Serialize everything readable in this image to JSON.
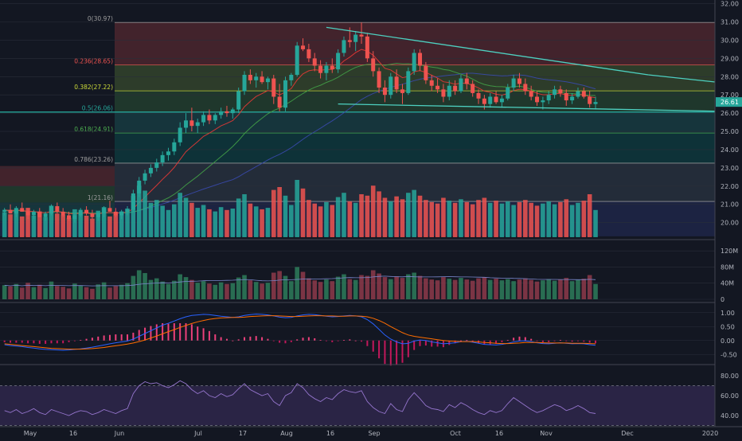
{
  "colors": {
    "background": "#131722",
    "up": "#26a69a",
    "down": "#ef5350",
    "trendline": "#4dd0c0",
    "fib_line_05": "#26a69a",
    "price_tag": "#26a69a",
    "ema_red": "#e53935",
    "ma_green": "#43a047",
    "ma_blue": "#3949ab",
    "macd": "#2962ff",
    "signal": "#ff6d00",
    "rsi_band": "#7e57c2"
  },
  "chart_data": [
    {
      "type": "candlestick",
      "name": "price",
      "y_axis_labels": [
        "32.00",
        "31.00",
        "30.00",
        "29.00",
        "28.00",
        "27.00",
        "26.00",
        "25.00",
        "24.00",
        "23.00",
        "22.00",
        "21.00",
        "20.00"
      ],
      "ylim": [
        19.2,
        32.2
      ],
      "x_axis_labels": [
        "May",
        "16",
        "Jun",
        "Jul",
        "17",
        "Aug",
        "16",
        "Sep",
        "Oct",
        "16",
        "Nov",
        "Dec",
        "2020"
      ],
      "last_price_label": "26.61",
      "last_price": 26.61,
      "fib_levels": [
        {
          "label": "0(30.97)",
          "value": 30.97,
          "color": "#9e9e9e",
          "fill": "#ef5350"
        },
        {
          "label": "0.236(28.65)",
          "value": 28.65,
          "color": "#ef5350",
          "fill": "#8bc34a"
        },
        {
          "label": "0.382(27.22)",
          "value": 27.22,
          "color": "#cddc39",
          "fill": "#4caf50"
        },
        {
          "label": "0.5(26.06)",
          "value": 26.06,
          "color": "#26a69a",
          "fill": "#26a69a"
        },
        {
          "label": "0.618(24.91)",
          "value": 24.91,
          "color": "#4caf50",
          "fill": "#009688"
        },
        {
          "label": "0.786(23.26)",
          "value": 23.26,
          "color": "#9e9e9e",
          "fill": "#607d8b"
        },
        {
          "label": "1(21.16)",
          "value": 21.16,
          "color": "#9e9e9e",
          "fill": "#3f51b5"
        }
      ],
      "fib_floor": 19.25,
      "left_fib": {
        "bands": [
          {
            "from": 23.1,
            "to": 22.0,
            "fill": "#ef5350"
          },
          {
            "from": 22.0,
            "to": 21.1,
            "fill": "#4caf50"
          },
          {
            "from": 21.1,
            "to": 20.1,
            "fill": "#26a69a"
          },
          {
            "from": 20.1,
            "to": 19.25,
            "fill": "#3f51b5"
          }
        ]
      },
      "trendlines": [
        {
          "from": [
            55,
            30.7
          ],
          "to": [
            110,
            28.1
          ]
        },
        {
          "from": [
            110,
            28.1
          ],
          "to": [
            158,
            26.45
          ]
        },
        {
          "from": [
            57,
            26.5
          ],
          "to": [
            126,
            26.08
          ]
        }
      ],
      "candles": [
        [
          20.6,
          20.8,
          20.4,
          20.7
        ],
        [
          20.7,
          21.0,
          20.5,
          20.5
        ],
        [
          20.5,
          20.9,
          20.3,
          20.8
        ],
        [
          20.8,
          21.1,
          20.6,
          20.6
        ],
        [
          20.6,
          20.8,
          20.2,
          20.4
        ],
        [
          20.4,
          20.7,
          20.2,
          20.6
        ],
        [
          20.6,
          20.8,
          20.3,
          20.3
        ],
        [
          20.3,
          20.6,
          20.1,
          20.5
        ],
        [
          20.5,
          21.0,
          20.4,
          20.9
        ],
        [
          20.9,
          21.1,
          20.5,
          20.6
        ],
        [
          20.6,
          20.8,
          20.3,
          20.4
        ],
        [
          20.4,
          20.6,
          20.1,
          20.2
        ],
        [
          20.2,
          20.5,
          20.0,
          20.4
        ],
        [
          20.4,
          20.8,
          20.3,
          20.7
        ],
        [
          20.7,
          20.9,
          20.4,
          20.5
        ],
        [
          20.5,
          20.7,
          20.2,
          20.3
        ],
        [
          20.3,
          20.6,
          20.1,
          20.5
        ],
        [
          20.5,
          20.9,
          20.3,
          20.8
        ],
        [
          20.8,
          21.2,
          20.6,
          20.6
        ],
        [
          20.6,
          20.8,
          20.3,
          20.4
        ],
        [
          20.4,
          20.7,
          20.2,
          20.6
        ],
        [
          20.6,
          20.9,
          20.4,
          20.7
        ],
        [
          20.7,
          21.8,
          20.6,
          21.6
        ],
        [
          21.6,
          22.5,
          21.4,
          22.3
        ],
        [
          22.3,
          22.9,
          22.1,
          22.7
        ],
        [
          22.7,
          23.2,
          22.5,
          23.0
        ],
        [
          23.0,
          23.5,
          22.8,
          23.3
        ],
        [
          23.3,
          23.9,
          23.1,
          23.7
        ],
        [
          23.7,
          24.1,
          23.4,
          23.9
        ],
        [
          23.9,
          24.6,
          23.7,
          24.4
        ],
        [
          24.4,
          25.5,
          24.2,
          25.2
        ],
        [
          25.2,
          26.0,
          24.9,
          25.6
        ],
        [
          25.6,
          26.3,
          25.0,
          25.3
        ],
        [
          25.3,
          25.7,
          24.9,
          25.5
        ],
        [
          25.5,
          26.1,
          25.3,
          25.9
        ],
        [
          25.9,
          26.2,
          25.4,
          25.6
        ],
        [
          25.6,
          26.0,
          25.4,
          25.9
        ],
        [
          25.9,
          26.3,
          25.7,
          26.1
        ],
        [
          26.1,
          26.4,
          25.8,
          26.0
        ],
        [
          26.0,
          26.3,
          25.7,
          26.2
        ],
        [
          26.2,
          27.4,
          26.0,
          27.2
        ],
        [
          27.2,
          28.3,
          27.0,
          28.1
        ],
        [
          28.1,
          28.4,
          27.6,
          27.8
        ],
        [
          27.8,
          28.2,
          27.4,
          28.0
        ],
        [
          28.0,
          28.3,
          27.6,
          27.7
        ],
        [
          27.7,
          28.0,
          27.3,
          27.9
        ],
        [
          27.9,
          28.1,
          26.5,
          26.9
        ],
        [
          26.9,
          27.6,
          26.1,
          26.3
        ],
        [
          26.3,
          28.0,
          26.1,
          27.8
        ],
        [
          27.8,
          28.2,
          27.5,
          28.1
        ],
        [
          28.1,
          29.9,
          28.0,
          29.7
        ],
        [
          29.7,
          30.1,
          29.4,
          29.5
        ],
        [
          29.5,
          29.8,
          28.8,
          29.0
        ],
        [
          29.0,
          29.3,
          28.3,
          28.6
        ],
        [
          28.6,
          28.9,
          27.9,
          28.2
        ],
        [
          28.2,
          28.8,
          27.8,
          28.6
        ],
        [
          28.6,
          29.0,
          28.2,
          28.4
        ],
        [
          28.4,
          29.5,
          28.2,
          29.3
        ],
        [
          29.3,
          30.2,
          29.1,
          30.0
        ],
        [
          30.0,
          30.7,
          29.6,
          29.9
        ],
        [
          29.9,
          30.5,
          29.4,
          30.3
        ],
        [
          30.3,
          30.97,
          29.8,
          30.2
        ],
        [
          30.2,
          30.4,
          28.8,
          29.0
        ],
        [
          29.0,
          29.4,
          28.0,
          28.3
        ],
        [
          28.3,
          28.5,
          27.1,
          27.4
        ],
        [
          27.4,
          27.8,
          26.6,
          27.0
        ],
        [
          27.0,
          28.2,
          26.8,
          28.0
        ],
        [
          28.0,
          28.4,
          27.1,
          27.3
        ],
        [
          27.3,
          27.6,
          26.5,
          27.1
        ],
        [
          27.1,
          28.5,
          27.0,
          28.3
        ],
        [
          28.3,
          29.5,
          28.1,
          29.3
        ],
        [
          29.3,
          29.5,
          28.3,
          28.6
        ],
        [
          28.6,
          28.8,
          27.6,
          27.8
        ],
        [
          27.8,
          28.1,
          27.2,
          27.5
        ],
        [
          27.5,
          27.9,
          27.1,
          27.3
        ],
        [
          27.3,
          27.6,
          26.6,
          26.9
        ],
        [
          26.9,
          27.8,
          26.7,
          27.5
        ],
        [
          27.5,
          27.8,
          27.0,
          27.2
        ],
        [
          27.2,
          28.1,
          27.1,
          27.9
        ],
        [
          27.9,
          28.2,
          27.3,
          27.6
        ],
        [
          27.6,
          27.8,
          26.9,
          27.1
        ],
        [
          27.1,
          27.3,
          26.5,
          26.8
        ],
        [
          26.8,
          27.0,
          26.2,
          26.5
        ],
        [
          26.5,
          27.1,
          26.3,
          26.9
        ],
        [
          26.9,
          27.2,
          26.5,
          26.6
        ],
        [
          26.6,
          27.0,
          26.3,
          26.8
        ],
        [
          26.8,
          27.6,
          26.7,
          27.4
        ],
        [
          27.4,
          28.1,
          27.2,
          27.9
        ],
        [
          27.9,
          28.2,
          27.4,
          27.6
        ],
        [
          27.6,
          27.9,
          27.0,
          27.2
        ],
        [
          27.2,
          27.5,
          26.7,
          26.9
        ],
        [
          26.9,
          27.2,
          26.4,
          26.6
        ],
        [
          26.6,
          26.9,
          26.2,
          26.7
        ],
        [
          26.7,
          27.2,
          26.5,
          27.0
        ],
        [
          27.0,
          27.5,
          26.8,
          27.3
        ],
        [
          27.3,
          27.5,
          26.9,
          27.1
        ],
        [
          27.1,
          27.3,
          26.4,
          26.7
        ],
        [
          26.7,
          27.1,
          26.5,
          26.9
        ],
        [
          26.9,
          27.4,
          26.8,
          27.2
        ],
        [
          27.2,
          27.4,
          26.8,
          26.9
        ],
        [
          26.9,
          27.2,
          26.3,
          26.5
        ],
        [
          26.5,
          26.9,
          26.2,
          26.61
        ]
      ]
    },
    {
      "type": "bar",
      "name": "volume",
      "y_axis_labels": [
        "120M",
        "80M",
        "40M",
        "0"
      ],
      "ylim": [
        0,
        140
      ],
      "values": [
        35,
        32,
        38,
        29,
        41,
        30,
        36,
        28,
        44,
        33,
        31,
        27,
        39,
        34,
        30,
        26,
        37,
        42,
        29,
        33,
        36,
        40,
        58,
        72,
        65,
        48,
        52,
        44,
        38,
        46,
        62,
        55,
        48,
        41,
        45,
        39,
        36,
        42,
        38,
        40,
        54,
        60,
        47,
        43,
        39,
        41,
        66,
        70,
        58,
        45,
        80,
        68,
        52,
        47,
        43,
        49,
        45,
        56,
        62,
        50,
        48,
        60,
        58,
        72,
        64,
        55,
        50,
        57,
        53,
        62,
        66,
        58,
        52,
        49,
        47,
        55,
        51,
        48,
        53,
        49,
        46,
        52,
        55,
        48,
        51,
        47,
        50,
        45,
        49,
        52,
        48,
        44,
        47,
        50,
        46,
        49,
        53,
        45,
        48,
        51,
        60,
        38
      ]
    },
    {
      "type": "line",
      "name": "macd",
      "y_axis_labels": [
        "1.00",
        "0.50",
        "0.00",
        "-0.50"
      ],
      "ylim": [
        -0.75,
        1.25
      ],
      "macd": [
        -0.15,
        -0.18,
        -0.2,
        -0.22,
        -0.25,
        -0.27,
        -0.3,
        -0.32,
        -0.33,
        -0.34,
        -0.35,
        -0.34,
        -0.32,
        -0.3,
        -0.27,
        -0.24,
        -0.2,
        -0.16,
        -0.12,
        -0.08,
        -0.05,
        -0.02,
        0.05,
        0.15,
        0.25,
        0.35,
        0.45,
        0.55,
        0.62,
        0.7,
        0.78,
        0.85,
        0.9,
        0.92,
        0.94,
        0.93,
        0.9,
        0.87,
        0.85,
        0.83,
        0.85,
        0.9,
        0.93,
        0.95,
        0.94,
        0.92,
        0.88,
        0.84,
        0.82,
        0.83,
        0.88,
        0.92,
        0.94,
        0.93,
        0.9,
        0.87,
        0.85,
        0.86,
        0.88,
        0.9,
        0.88,
        0.85,
        0.75,
        0.6,
        0.4,
        0.2,
        0.05,
        -0.05,
        -0.12,
        -0.1,
        -0.02,
        0.02,
        0.0,
        -0.05,
        -0.08,
        -0.12,
        -0.1,
        -0.08,
        -0.04,
        -0.03,
        -0.06,
        -0.1,
        -0.14,
        -0.15,
        -0.16,
        -0.14,
        -0.1,
        -0.05,
        -0.02,
        -0.01,
        -0.04,
        -0.08,
        -0.11,
        -0.12,
        -0.1,
        -0.08,
        -0.1,
        -0.12,
        -0.11,
        -0.12,
        -0.15,
        -0.17
      ],
      "signal": [
        -0.12,
        -0.14,
        -0.16,
        -0.18,
        -0.2,
        -0.22,
        -0.24,
        -0.26,
        -0.28,
        -0.29,
        -0.3,
        -0.31,
        -0.31,
        -0.31,
        -0.3,
        -0.29,
        -0.27,
        -0.25,
        -0.22,
        -0.19,
        -0.16,
        -0.13,
        -0.09,
        -0.04,
        0.02,
        0.09,
        0.16,
        0.24,
        0.32,
        0.39,
        0.47,
        0.54,
        0.61,
        0.67,
        0.72,
        0.76,
        0.79,
        0.81,
        0.82,
        0.83,
        0.83,
        0.84,
        0.86,
        0.87,
        0.88,
        0.89,
        0.89,
        0.88,
        0.87,
        0.86,
        0.86,
        0.87,
        0.88,
        0.89,
        0.89,
        0.88,
        0.88,
        0.87,
        0.87,
        0.88,
        0.88,
        0.87,
        0.85,
        0.8,
        0.72,
        0.62,
        0.5,
        0.39,
        0.28,
        0.2,
        0.15,
        0.12,
        0.09,
        0.06,
        0.03,
        0.0,
        -0.02,
        -0.03,
        -0.04,
        -0.04,
        -0.04,
        -0.05,
        -0.07,
        -0.08,
        -0.1,
        -0.11,
        -0.11,
        -0.1,
        -0.09,
        -0.07,
        -0.07,
        -0.07,
        -0.08,
        -0.09,
        -0.09,
        -0.09,
        -0.09,
        -0.1,
        -0.1,
        -0.1,
        -0.11,
        -0.12
      ]
    },
    {
      "type": "line",
      "name": "rsi",
      "y_axis_labels": [
        "80.00",
        "60.00",
        "40.00"
      ],
      "ylim": [
        32,
        88
      ],
      "band": [
        30,
        70
      ],
      "values": [
        45,
        43,
        46,
        42,
        44,
        47,
        43,
        41,
        46,
        44,
        42,
        40,
        43,
        45,
        44,
        41,
        43,
        46,
        44,
        42,
        45,
        47,
        62,
        70,
        74,
        72,
        73,
        70,
        68,
        71,
        75,
        72,
        66,
        62,
        65,
        60,
        58,
        62,
        59,
        61,
        67,
        72,
        66,
        63,
        60,
        62,
        54,
        50,
        60,
        63,
        72,
        68,
        61,
        57,
        54,
        58,
        56,
        62,
        66,
        64,
        63,
        65,
        54,
        48,
        44,
        42,
        52,
        46,
        44,
        56,
        63,
        57,
        50,
        47,
        46,
        44,
        51,
        48,
        53,
        50,
        46,
        43,
        41,
        45,
        43,
        45,
        52,
        58,
        54,
        50,
        46,
        43,
        45,
        48,
        51,
        49,
        45,
        47,
        50,
        47,
        43,
        42
      ]
    }
  ]
}
